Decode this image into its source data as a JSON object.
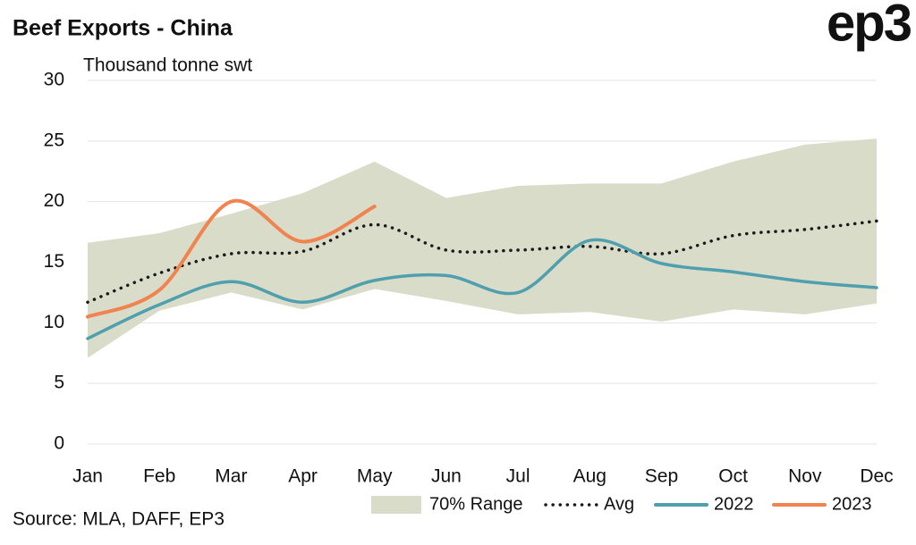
{
  "chart_data": {
    "type": "line",
    "title": "Beef Exports - China",
    "logo": "ep3",
    "y_label": "Thousand tonne swt",
    "source": "Source: MLA, DAFF, EP3",
    "categories": [
      "Jan",
      "Feb",
      "Mar",
      "Apr",
      "May",
      "Jun",
      "Jul",
      "Aug",
      "Sep",
      "Oct",
      "Nov",
      "Dec"
    ],
    "ylim": [
      0,
      30
    ],
    "yticks": [
      0,
      5,
      10,
      15,
      20,
      25,
      30
    ],
    "grid": true,
    "legend": "bottom",
    "series": [
      {
        "name": "70% Range",
        "kind": "range",
        "color": "#d9dcc8",
        "upper": [
          16.6,
          17.4,
          19.0,
          20.7,
          23.3,
          20.3,
          21.3,
          21.5,
          21.5,
          23.3,
          24.7,
          25.2
        ],
        "lower": [
          7.1,
          11.0,
          12.5,
          11.1,
          12.8,
          11.8,
          10.7,
          10.9,
          10.1,
          11.1,
          10.7,
          11.6
        ]
      },
      {
        "name": "Avg",
        "kind": "dotted",
        "color": "#1a1a1a",
        "values": [
          11.7,
          14.1,
          15.7,
          15.9,
          18.1,
          16.0,
          16.0,
          16.3,
          15.7,
          17.2,
          17.7,
          18.4
        ]
      },
      {
        "name": "2022",
        "kind": "line",
        "color": "#4f9fae",
        "values": [
          8.7,
          11.5,
          13.4,
          11.7,
          13.5,
          13.9,
          12.5,
          16.8,
          14.9,
          14.2,
          13.4,
          12.9
        ]
      },
      {
        "name": "2023",
        "kind": "line",
        "color": "#f0834f",
        "values": [
          10.5,
          12.7,
          20.0,
          16.7,
          19.6,
          null,
          null,
          null,
          null,
          null,
          null,
          null
        ]
      }
    ]
  }
}
